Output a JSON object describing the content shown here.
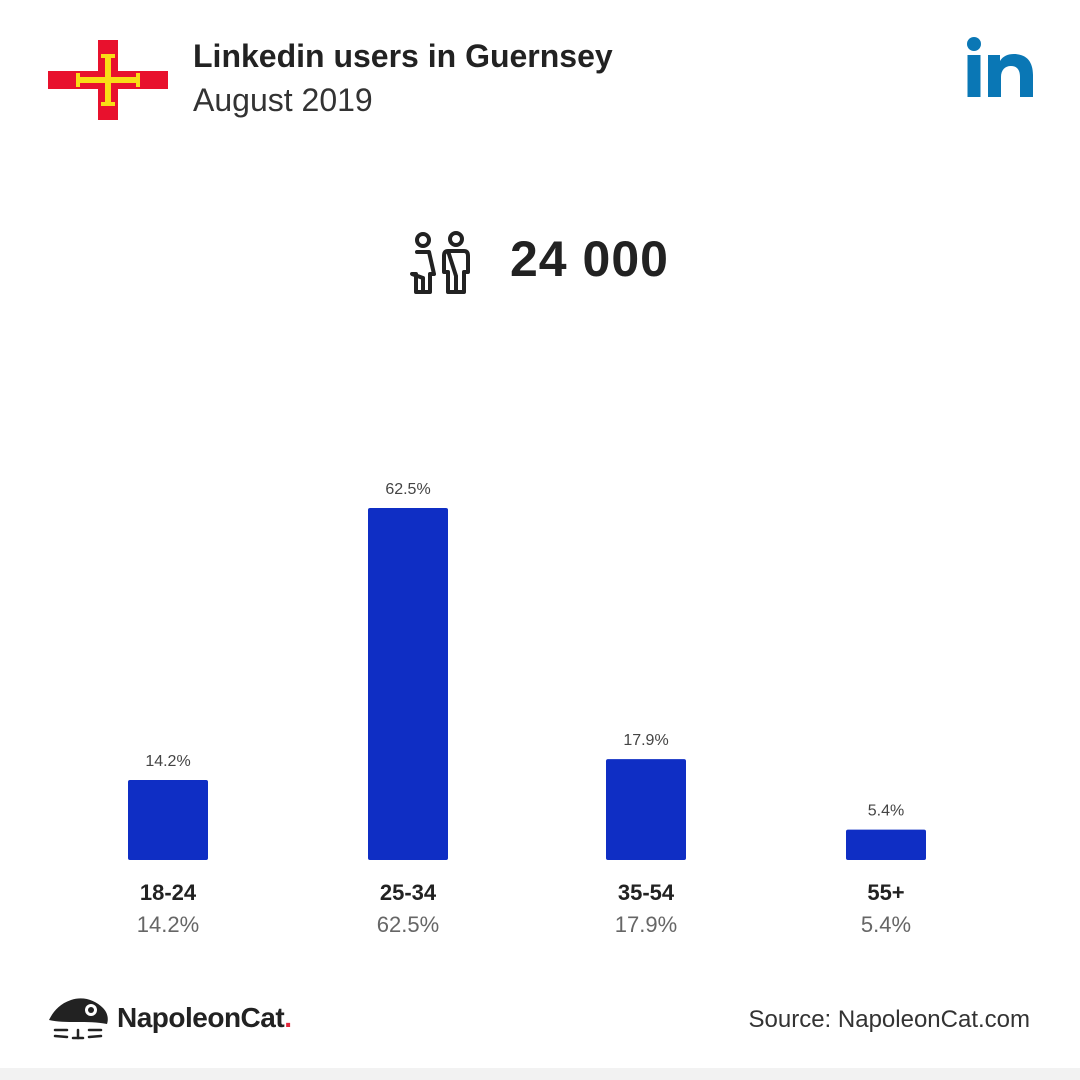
{
  "header": {
    "title": "Linkedin users in Guernsey",
    "subtitle": "August 2019"
  },
  "brand_colors": {
    "bar": "#0f2ec4",
    "linkedin": "#0a77b5",
    "flag_red": "#e8112d",
    "flag_yellow": "#f9dd16"
  },
  "icons": {
    "flag": "guernsey-flag-icon",
    "platform": "linkedin-icon",
    "users": "users-icon",
    "brand": "napoleoncat-icon"
  },
  "users_total": "24 000",
  "chart_data": {
    "type": "bar",
    "categories": [
      "18-24",
      "25-34",
      "35-54",
      "55+"
    ],
    "values": [
      14.2,
      62.5,
      17.9,
      5.4
    ],
    "value_labels": [
      "14.2%",
      "62.5%",
      "17.9%",
      "5.4%"
    ],
    "unit": "%",
    "title": "",
    "xlabel": "",
    "ylabel": "",
    "ylim": [
      0,
      62.5
    ],
    "grid": false,
    "legend": "none"
  },
  "footer": {
    "brand_name": "NapoleonCat",
    "brand_dot": ".",
    "source": "Source: NapoleonCat.com"
  }
}
